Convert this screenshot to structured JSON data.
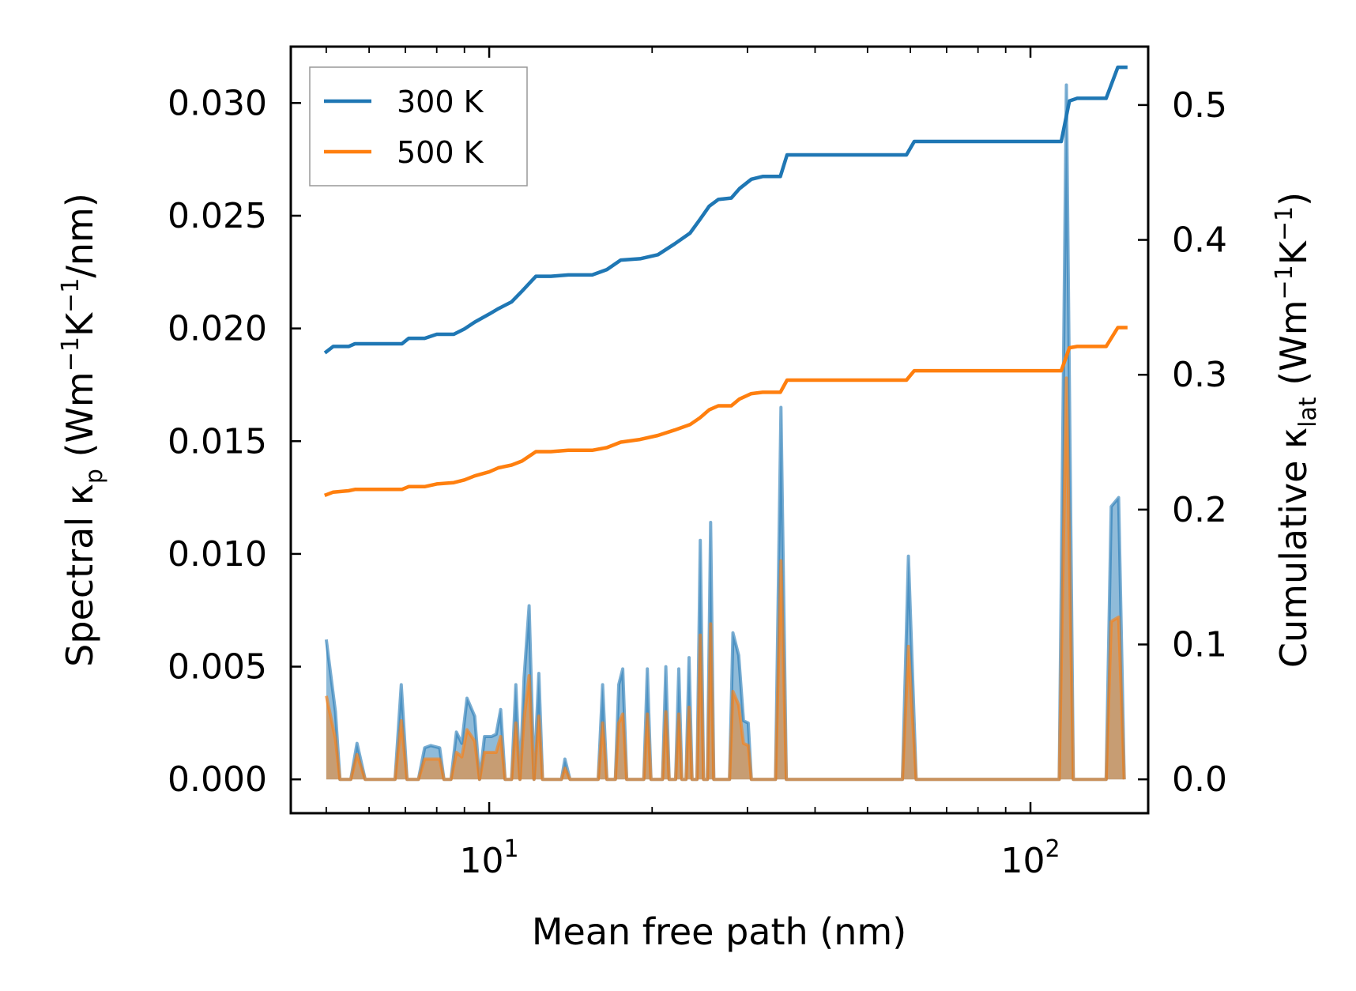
{
  "chart_data": {
    "type": "line",
    "title": "",
    "xlabel": "Mean free path (nm)",
    "ylabel_left": [
      "Spectral κ",
      "p",
      " (Wm",
      "−1",
      "K",
      "−1",
      "/nm)"
    ],
    "ylabel_right": [
      "Cumulative κ",
      "lat",
      " (Wm",
      "−1",
      "K",
      "−1",
      ")"
    ],
    "xscale": "log",
    "xlim": [
      4.3,
      165
    ],
    "ylim_left": [
      -0.0015,
      0.0325
    ],
    "ylim_right": [
      -0.0251,
      0.5433
    ],
    "x_ticks": [
      {
        "value": 10,
        "base": "10",
        "exp": "1"
      },
      {
        "value": 100,
        "base": "10",
        "exp": "2"
      }
    ],
    "y_ticks_left": [
      {
        "value": 0.0,
        "label": "0.000"
      },
      {
        "value": 0.005,
        "label": "0.005"
      },
      {
        "value": 0.01,
        "label": "0.010"
      },
      {
        "value": 0.015,
        "label": "0.015"
      },
      {
        "value": 0.02,
        "label": "0.020"
      },
      {
        "value": 0.025,
        "label": "0.025"
      },
      {
        "value": 0.03,
        "label": "0.030"
      }
    ],
    "y_ticks_right": [
      {
        "value": 0.0,
        "label": "0.0"
      },
      {
        "value": 0.1,
        "label": "0.1"
      },
      {
        "value": 0.2,
        "label": "0.2"
      },
      {
        "value": 0.3,
        "label": "0.3"
      },
      {
        "value": 0.4,
        "label": "0.4"
      },
      {
        "value": 0.5,
        "label": "0.5"
      }
    ],
    "legend": {
      "placement": "top-left",
      "entries": [
        {
          "label": "300 K",
          "color": "#1f77b4"
        },
        {
          "label": "500 K",
          "color": "#ff7f0e"
        }
      ]
    },
    "series": [
      {
        "name": "300 K",
        "color": "#1f77b4",
        "axis": "right",
        "kind": "cumulative",
        "points": [
          [
            5.0,
            0.317
          ],
          [
            5.15,
            0.321
          ],
          [
            5.5,
            0.321
          ],
          [
            5.65,
            0.323
          ],
          [
            6.0,
            0.323
          ],
          [
            6.5,
            0.323
          ],
          [
            6.9,
            0.323
          ],
          [
            7.1,
            0.327
          ],
          [
            7.6,
            0.327
          ],
          [
            8.0,
            0.33
          ],
          [
            8.6,
            0.33
          ],
          [
            9.0,
            0.334
          ],
          [
            9.4,
            0.339
          ],
          [
            10.0,
            0.345
          ],
          [
            10.4,
            0.349
          ],
          [
            11.0,
            0.354
          ],
          [
            11.5,
            0.362
          ],
          [
            12.2,
            0.373
          ],
          [
            13.0,
            0.373
          ],
          [
            14.0,
            0.374
          ],
          [
            15.5,
            0.374
          ],
          [
            16.5,
            0.378
          ],
          [
            17.5,
            0.385
          ],
          [
            19.0,
            0.386
          ],
          [
            20.5,
            0.389
          ],
          [
            22.0,
            0.397
          ],
          [
            23.5,
            0.405
          ],
          [
            24.5,
            0.415
          ],
          [
            25.5,
            0.425
          ],
          [
            26.5,
            0.43
          ],
          [
            28.0,
            0.431
          ],
          [
            29.0,
            0.438
          ],
          [
            30.5,
            0.445
          ],
          [
            32.0,
            0.447
          ],
          [
            34.5,
            0.447
          ],
          [
            35.5,
            0.463
          ],
          [
            45.0,
            0.463
          ],
          [
            59.0,
            0.463
          ],
          [
            61.0,
            0.473
          ],
          [
            85.0,
            0.473
          ],
          [
            114.0,
            0.473
          ],
          [
            118.0,
            0.503
          ],
          [
            122.0,
            0.505
          ],
          [
            138.0,
            0.505
          ],
          [
            145.0,
            0.528
          ],
          [
            150.0,
            0.528
          ]
        ]
      },
      {
        "name": "500 K",
        "color": "#ff7f0e",
        "axis": "right",
        "kind": "cumulative",
        "points": [
          [
            5.0,
            0.211
          ],
          [
            5.15,
            0.213
          ],
          [
            5.5,
            0.214
          ],
          [
            5.65,
            0.215
          ],
          [
            6.0,
            0.215
          ],
          [
            6.5,
            0.215
          ],
          [
            6.9,
            0.215
          ],
          [
            7.1,
            0.217
          ],
          [
            7.6,
            0.217
          ],
          [
            8.0,
            0.219
          ],
          [
            8.6,
            0.22
          ],
          [
            9.0,
            0.222
          ],
          [
            9.4,
            0.225
          ],
          [
            10.0,
            0.228
          ],
          [
            10.4,
            0.231
          ],
          [
            11.0,
            0.233
          ],
          [
            11.5,
            0.236
          ],
          [
            12.2,
            0.243
          ],
          [
            13.0,
            0.243
          ],
          [
            14.0,
            0.244
          ],
          [
            15.5,
            0.244
          ],
          [
            16.5,
            0.246
          ],
          [
            17.5,
            0.25
          ],
          [
            19.0,
            0.252
          ],
          [
            20.5,
            0.255
          ],
          [
            22.0,
            0.259
          ],
          [
            23.5,
            0.263
          ],
          [
            24.5,
            0.268
          ],
          [
            25.5,
            0.274
          ],
          [
            26.5,
            0.277
          ],
          [
            28.0,
            0.277
          ],
          [
            29.0,
            0.282
          ],
          [
            30.5,
            0.286
          ],
          [
            32.0,
            0.287
          ],
          [
            34.5,
            0.287
          ],
          [
            35.5,
            0.296
          ],
          [
            45.0,
            0.296
          ],
          [
            59.0,
            0.296
          ],
          [
            61.0,
            0.303
          ],
          [
            85.0,
            0.303
          ],
          [
            114.0,
            0.303
          ],
          [
            118.0,
            0.32
          ],
          [
            122.0,
            0.321
          ],
          [
            138.0,
            0.321
          ],
          [
            145.0,
            0.335
          ],
          [
            150.0,
            0.335
          ]
        ]
      },
      {
        "name": "300 K spectral",
        "color": "#1f77b4",
        "axis": "left",
        "kind": "spectral",
        "points": [
          [
            5.0,
            0.0062
          ],
          [
            5.2,
            0.003
          ],
          [
            5.3,
            0.0
          ],
          [
            5.55,
            0.0
          ],
          [
            5.7,
            0.0016
          ],
          [
            5.9,
            0.0
          ],
          [
            6.7,
            0.0
          ],
          [
            6.88,
            0.0042
          ],
          [
            7.05,
            0.0
          ],
          [
            7.4,
            0.0
          ],
          [
            7.6,
            0.0014
          ],
          [
            7.8,
            0.0015
          ],
          [
            8.1,
            0.0014
          ],
          [
            8.25,
            0.0
          ],
          [
            8.5,
            0.0
          ],
          [
            8.7,
            0.0021
          ],
          [
            8.9,
            0.0016
          ],
          [
            9.1,
            0.0036
          ],
          [
            9.4,
            0.0028
          ],
          [
            9.6,
            0.0
          ],
          [
            9.8,
            0.0019
          ],
          [
            10.1,
            0.0019
          ],
          [
            10.3,
            0.002
          ],
          [
            10.5,
            0.0031
          ],
          [
            10.7,
            0.0
          ],
          [
            11.0,
            0.0
          ],
          [
            11.2,
            0.0042
          ],
          [
            11.4,
            0.0
          ],
          [
            11.6,
            0.0045
          ],
          [
            11.85,
            0.0077
          ],
          [
            12.1,
            0.0
          ],
          [
            12.35,
            0.0047
          ],
          [
            12.55,
            0.0
          ],
          [
            13.6,
            0.0
          ],
          [
            13.8,
            0.0009
          ],
          [
            14.1,
            0.0
          ],
          [
            15.9,
            0.0
          ],
          [
            16.2,
            0.0042
          ],
          [
            16.5,
            0.0
          ],
          [
            17.1,
            0.0
          ],
          [
            17.35,
            0.0042
          ],
          [
            17.65,
            0.0049
          ],
          [
            17.95,
            0.0
          ],
          [
            19.3,
            0.0
          ],
          [
            19.6,
            0.0049
          ],
          [
            19.9,
            0.0
          ],
          [
            20.9,
            0.0
          ],
          [
            21.2,
            0.005
          ],
          [
            21.5,
            0.0
          ],
          [
            22.1,
            0.0
          ],
          [
            22.4,
            0.0049
          ],
          [
            22.7,
            0.0
          ],
          [
            23.1,
            0.0
          ],
          [
            23.4,
            0.0054
          ],
          [
            23.7,
            0.0
          ],
          [
            24.2,
            0.0
          ],
          [
            24.55,
            0.0106
          ],
          [
            24.9,
            0.0
          ],
          [
            25.3,
            0.0
          ],
          [
            25.65,
            0.0114
          ],
          [
            26.0,
            0.0
          ],
          [
            27.8,
            0.0
          ],
          [
            28.2,
            0.0065
          ],
          [
            28.9,
            0.0055
          ],
          [
            29.5,
            0.0026
          ],
          [
            30.1,
            0.0025
          ],
          [
            30.5,
            0.0
          ],
          [
            33.8,
            0.0
          ],
          [
            34.6,
            0.0165
          ],
          [
            35.4,
            0.0
          ],
          [
            58.0,
            0.0
          ],
          [
            59.5,
            0.0099
          ],
          [
            61.5,
            0.0
          ],
          [
            113.0,
            0.0
          ],
          [
            116.5,
            0.0308
          ],
          [
            120.0,
            0.0
          ],
          [
            138.0,
            0.0
          ],
          [
            141.0,
            0.0121
          ],
          [
            145.5,
            0.0125
          ],
          [
            149.0,
            0.0
          ]
        ]
      },
      {
        "name": "500 K spectral",
        "color": "#ff7f0e",
        "axis": "left",
        "kind": "spectral",
        "points": [
          [
            5.0,
            0.0037
          ],
          [
            5.2,
            0.0018
          ],
          [
            5.3,
            0.0
          ],
          [
            5.55,
            0.0
          ],
          [
            5.7,
            0.0011
          ],
          [
            5.9,
            0.0
          ],
          [
            6.7,
            0.0
          ],
          [
            6.88,
            0.0026
          ],
          [
            7.05,
            0.0
          ],
          [
            7.4,
            0.0
          ],
          [
            7.6,
            0.0009
          ],
          [
            7.8,
            0.0009
          ],
          [
            8.1,
            0.0009
          ],
          [
            8.25,
            0.0
          ],
          [
            8.5,
            0.0
          ],
          [
            8.7,
            0.0012
          ],
          [
            8.9,
            0.001
          ],
          [
            9.1,
            0.0022
          ],
          [
            9.4,
            0.0017
          ],
          [
            9.6,
            0.0
          ],
          [
            9.8,
            0.0012
          ],
          [
            10.1,
            0.0012
          ],
          [
            10.3,
            0.0012
          ],
          [
            10.5,
            0.0019
          ],
          [
            10.7,
            0.0
          ],
          [
            11.0,
            0.0
          ],
          [
            11.2,
            0.0025
          ],
          [
            11.4,
            0.0
          ],
          [
            11.6,
            0.0027
          ],
          [
            11.85,
            0.0046
          ],
          [
            12.1,
            0.0
          ],
          [
            12.35,
            0.0028
          ],
          [
            12.55,
            0.0
          ],
          [
            13.6,
            0.0
          ],
          [
            13.8,
            0.0005
          ],
          [
            14.1,
            0.0
          ],
          [
            15.9,
            0.0
          ],
          [
            16.2,
            0.0025
          ],
          [
            16.5,
            0.0
          ],
          [
            17.1,
            0.0
          ],
          [
            17.35,
            0.0025
          ],
          [
            17.65,
            0.0029
          ],
          [
            17.95,
            0.0
          ],
          [
            19.3,
            0.0
          ],
          [
            19.6,
            0.0029
          ],
          [
            19.9,
            0.0
          ],
          [
            20.9,
            0.0
          ],
          [
            21.2,
            0.003
          ],
          [
            21.5,
            0.0
          ],
          [
            22.1,
            0.0
          ],
          [
            22.4,
            0.0029
          ],
          [
            22.7,
            0.0
          ],
          [
            23.1,
            0.0
          ],
          [
            23.4,
            0.0032
          ],
          [
            23.7,
            0.0
          ],
          [
            24.2,
            0.0
          ],
          [
            24.55,
            0.0064
          ],
          [
            24.9,
            0.0
          ],
          [
            25.3,
            0.0
          ],
          [
            25.65,
            0.0069
          ],
          [
            26.0,
            0.0
          ],
          [
            27.8,
            0.0
          ],
          [
            28.2,
            0.0039
          ],
          [
            28.9,
            0.0033
          ],
          [
            29.5,
            0.0016
          ],
          [
            30.1,
            0.0015
          ],
          [
            30.5,
            0.0
          ],
          [
            33.8,
            0.0
          ],
          [
            34.6,
            0.0097
          ],
          [
            35.4,
            0.0
          ],
          [
            58.0,
            0.0
          ],
          [
            59.5,
            0.0059
          ],
          [
            61.5,
            0.0
          ],
          [
            113.0,
            0.0
          ],
          [
            116.5,
            0.0178
          ],
          [
            120.0,
            0.0
          ],
          [
            138.0,
            0.0
          ],
          [
            141.0,
            0.007
          ],
          [
            145.5,
            0.0072
          ],
          [
            149.0,
            0.0
          ]
        ]
      }
    ]
  }
}
